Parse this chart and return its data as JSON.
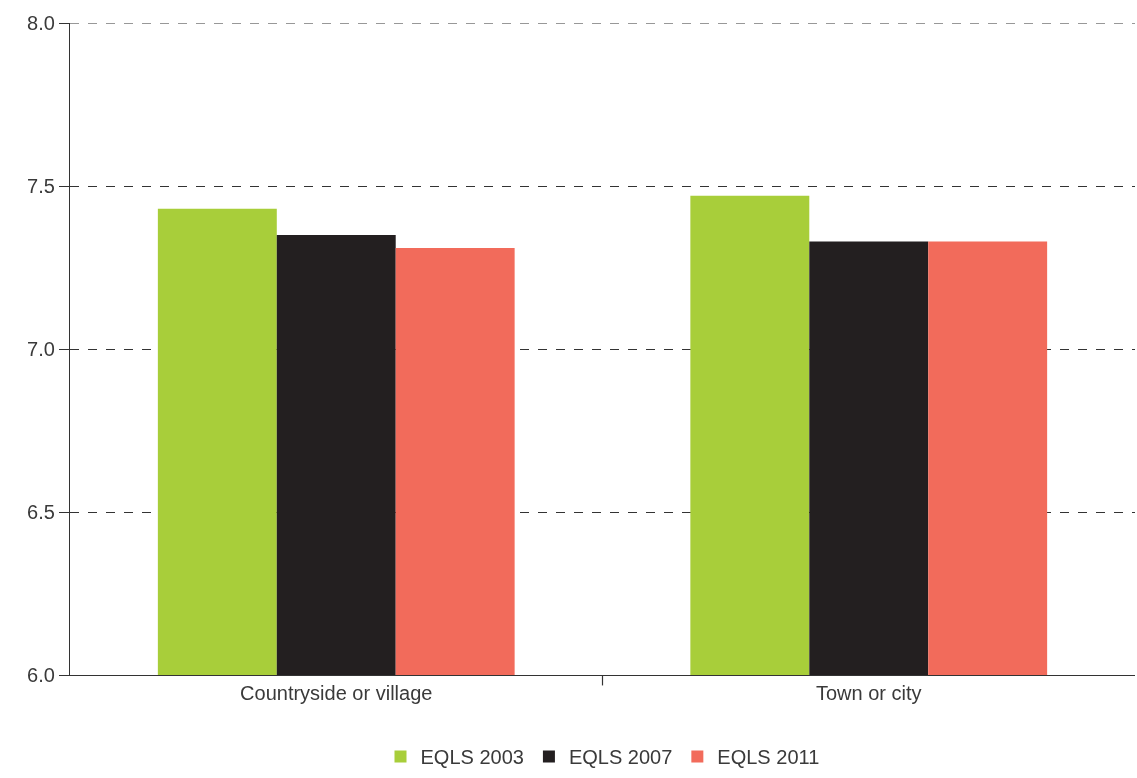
{
  "chart_data": {
    "type": "bar",
    "categories": [
      "Countryside or village",
      "Town or city"
    ],
    "series": [
      {
        "name": "EQLS 2003",
        "color": "#a8ce3a",
        "values": [
          7.43,
          7.47
        ]
      },
      {
        "name": "EQLS 2007",
        "color": "#231f20",
        "values": [
          7.35,
          7.33
        ]
      },
      {
        "name": "EQLS 2011",
        "color": "#f26b5b",
        "values": [
          7.31,
          7.33
        ]
      }
    ],
    "ylim": [
      6,
      8
    ],
    "yticks": [
      {
        "value": 6,
        "label": "6.0"
      },
      {
        "value": 6.5,
        "label": "6.5"
      },
      {
        "value": 7,
        "label": "7.0"
      },
      {
        "value": 7.5,
        "label": "7.5"
      },
      {
        "value": 8,
        "label": "8.0"
      }
    ],
    "grid": "y",
    "legend": "bottom"
  }
}
